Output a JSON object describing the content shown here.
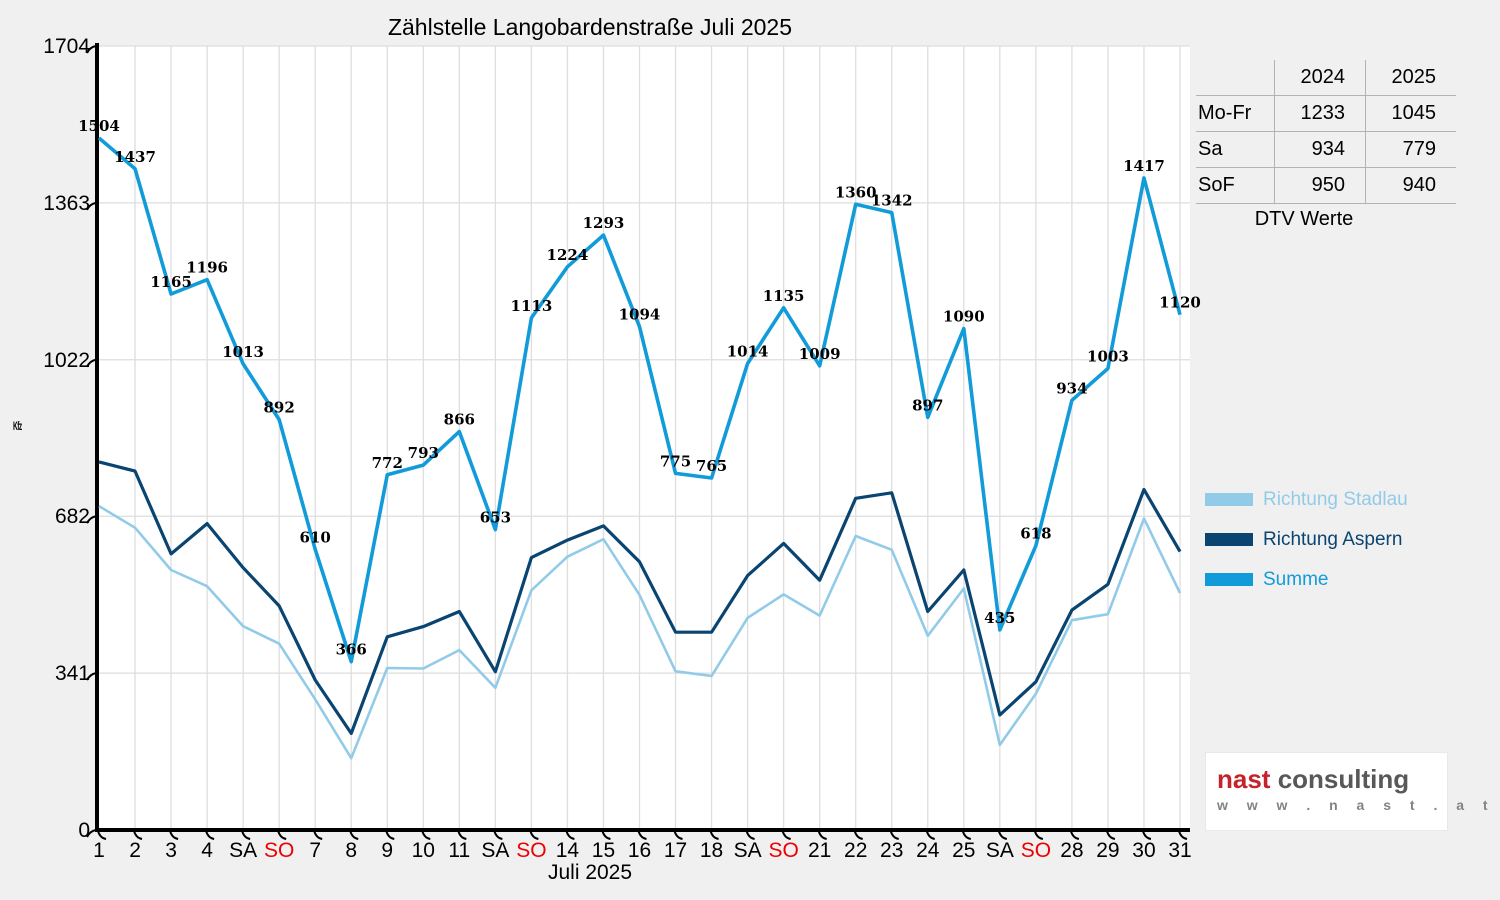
{
  "chart_data": {
    "type": "line",
    "title": "Zählstelle Langobardenstraße Juli 2025",
    "xlabel": "Juli 2025",
    "ylabel": "Kfz",
    "ylim": [
      0,
      1704
    ],
    "y_ticks": [
      0,
      341,
      682,
      1022,
      1363,
      1704
    ],
    "grid": true,
    "legend_position": "right",
    "weekend_label_color": "#ee0000",
    "categories": [
      "1",
      "2",
      "3",
      "4",
      "SA",
      "SO",
      "7",
      "8",
      "9",
      "10",
      "11",
      "SA",
      "SO",
      "14",
      "15",
      "16",
      "17",
      "18",
      "SA",
      "SO",
      "21",
      "22",
      "23",
      "24",
      "25",
      "SA",
      "SO",
      "28",
      "29",
      "30",
      "31"
    ],
    "series": [
      {
        "name": "Richtung Stadlau",
        "color": "#92cbe8",
        "values": [
          704,
          657,
          565,
          530,
          443,
          405,
          284,
          156,
          352,
          351,
          391,
          309,
          521,
          594,
          632,
          511,
          345,
          335,
          461,
          512,
          466,
          639,
          609,
          422,
          525,
          185,
          296,
          456,
          469,
          677,
          515
        ],
        "labeled": false
      },
      {
        "name": "Richtung Aspern",
        "color": "#0a4470",
        "values": [
          800,
          780,
          600,
          666,
          570,
          487,
          326,
          210,
          420,
          442,
          475,
          344,
          592,
          630,
          661,
          583,
          430,
          430,
          553,
          623,
          543,
          721,
          733,
          475,
          565,
          250,
          322,
          478,
          534,
          740,
          605
        ],
        "labeled": false
      },
      {
        "name": "Summe",
        "color": "#119bd9",
        "values": [
          1504,
          1437,
          1165,
          1196,
          1013,
          892,
          610,
          366,
          772,
          793,
          866,
          653,
          1113,
          1224,
          1293,
          1094,
          775,
          765,
          1014,
          1135,
          1009,
          1360,
          1342,
          897,
          1090,
          435,
          618,
          934,
          1003,
          1417,
          1120
        ],
        "labeled": true
      }
    ]
  },
  "table": {
    "caption": "DTV Werte",
    "col_headers": [
      "2024",
      "2025"
    ],
    "rows": [
      {
        "label": "Mo-Fr",
        "values": [
          "1233",
          "1045"
        ]
      },
      {
        "label": "Sa",
        "values": [
          "934",
          "779"
        ]
      },
      {
        "label": "SoF",
        "values": [
          "950",
          "940"
        ]
      }
    ]
  },
  "legend": [
    {
      "label": "Richtung Stadlau",
      "color": "#92cbe8"
    },
    {
      "label": "Richtung Aspern",
      "color": "#0a4470"
    },
    {
      "label": "Summe",
      "color": "#119bd9"
    }
  ],
  "logo": {
    "brand_primary": "nast",
    "brand_secondary": "consulting",
    "url_text": "w w w . n a s t . a t"
  },
  "colors": {
    "background": "#f0f0f0",
    "plot_background": "#ffffff",
    "gridline": "#dedede",
    "axis": "#000000",
    "data_label": "#000000",
    "weekend": "#ee0000"
  }
}
